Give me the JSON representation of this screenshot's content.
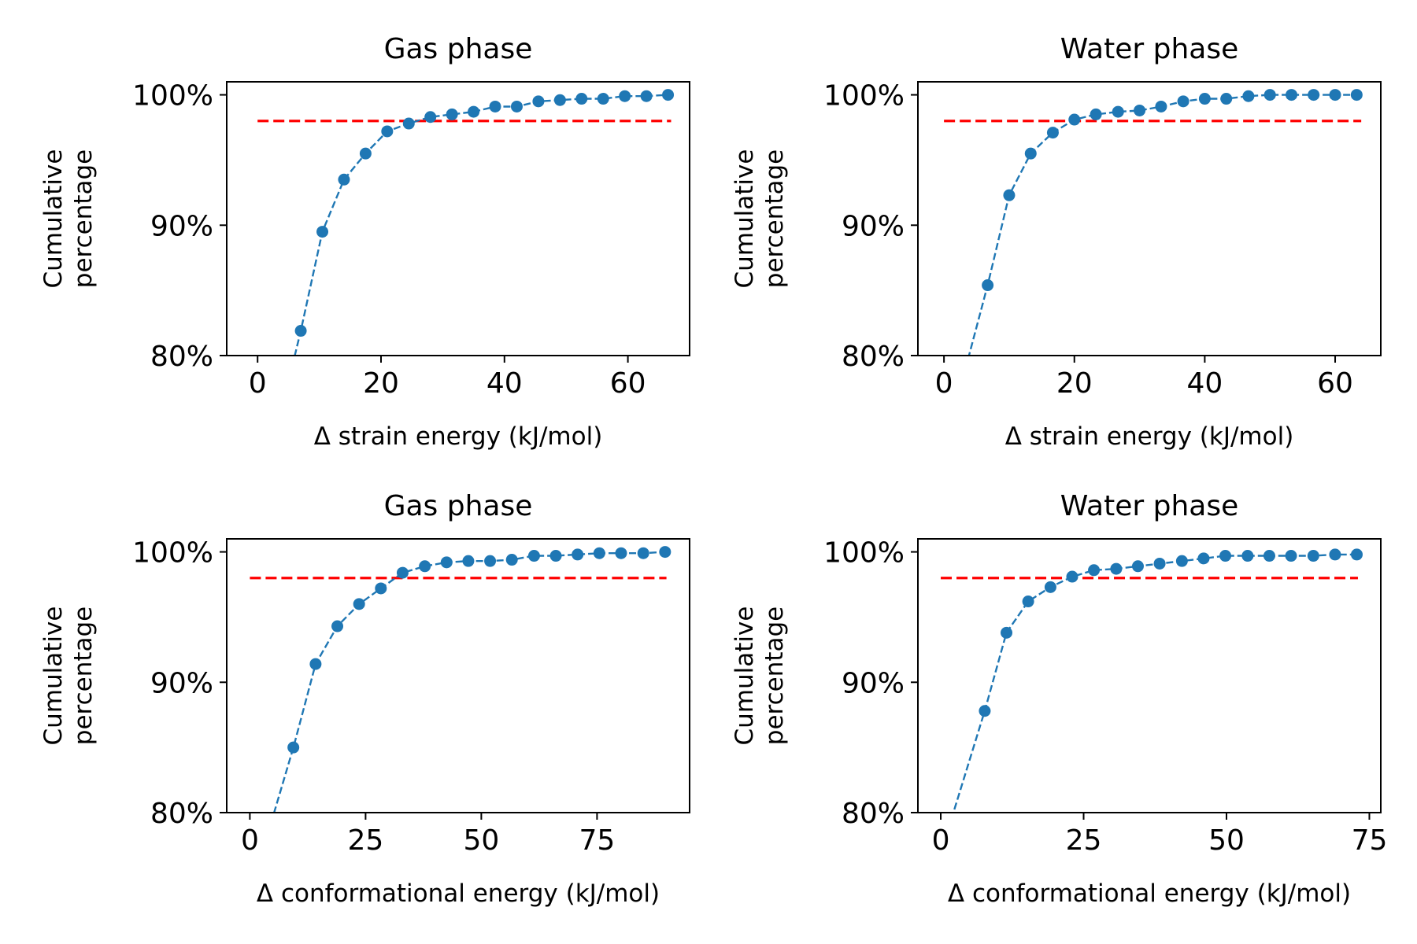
{
  "colors": {
    "series": "#1f77b4",
    "threshold": "#ff0000",
    "axis": "#000000",
    "background": "#ffffff"
  },
  "chart_data": [
    {
      "type": "line",
      "title": "Gas phase",
      "xlabel": "Δ strain energy (kJ/mol)",
      "ylabel": [
        "Cumulative",
        "percentage"
      ],
      "xlim": [
        -5,
        70
      ],
      "ylim": [
        0.8,
        1.01
      ],
      "xticks": [
        0,
        20,
        40,
        60
      ],
      "xtick_labels": [
        "0",
        "20",
        "40",
        "60"
      ],
      "yticks": [
        0.8,
        0.9,
        1.0
      ],
      "ytick_labels": [
        "80%",
        "90%",
        "100%"
      ],
      "grid": false,
      "legend": "none",
      "threshold": {
        "y": 0.98,
        "x": [
          0,
          67
        ],
        "style": "dashed"
      },
      "series": [
        {
          "style": "dashed-line-with-dots",
          "x": [
            7,
            10.5,
            14,
            17.5,
            21,
            24.5,
            28,
            31.5,
            35,
            38.5,
            42,
            45.5,
            49,
            52.5,
            56,
            59.5,
            63,
            66.5
          ],
          "y": [
            0.819,
            0.895,
            0.935,
            0.955,
            0.972,
            0.978,
            0.983,
            0.985,
            0.987,
            0.991,
            0.991,
            0.995,
            0.996,
            0.997,
            0.997,
            0.999,
            0.999,
            1.0
          ]
        }
      ]
    },
    {
      "type": "line",
      "title": "Water phase",
      "xlabel": "Δ strain energy (kJ/mol)",
      "ylabel": [
        "Cumulative",
        "percentage"
      ],
      "xlim": [
        -4,
        67
      ],
      "ylim": [
        0.8,
        1.01
      ],
      "xticks": [
        0,
        20,
        40,
        60
      ],
      "xtick_labels": [
        "0",
        "20",
        "40",
        "60"
      ],
      "yticks": [
        0.8,
        0.9,
        1.0
      ],
      "ytick_labels": [
        "80%",
        "90%",
        "100%"
      ],
      "grid": false,
      "legend": "none",
      "threshold": {
        "y": 0.98,
        "x": [
          0,
          64
        ],
        "style": "dashed"
      },
      "series": [
        {
          "style": "dashed-line-with-dots",
          "x": [
            6.7,
            10,
            13.3,
            16.7,
            20,
            23.3,
            26.7,
            30,
            33.3,
            36.7,
            40,
            43.3,
            46.7,
            50,
            53.3,
            56.7,
            60,
            63.3
          ],
          "y": [
            0.854,
            0.923,
            0.955,
            0.971,
            0.981,
            0.985,
            0.987,
            0.988,
            0.991,
            0.995,
            0.997,
            0.997,
            0.999,
            1.0,
            1.0,
            1.0,
            1.0,
            1.0
          ]
        }
      ]
    },
    {
      "type": "line",
      "title": "Gas phase",
      "xlabel": "Δ conformational energy (kJ/mol)",
      "ylabel": [
        "Cumulative",
        "percentage"
      ],
      "xlim": [
        -5,
        95
      ],
      "ylim": [
        0.8,
        1.01
      ],
      "xticks": [
        0,
        25,
        50,
        75
      ],
      "xtick_labels": [
        "0",
        "25",
        "50",
        "75"
      ],
      "yticks": [
        0.8,
        0.9,
        1.0
      ],
      "ytick_labels": [
        "80%",
        "90%",
        "100%"
      ],
      "grid": false,
      "legend": "none",
      "threshold": {
        "y": 0.98,
        "x": [
          0,
          90
        ],
        "style": "dashed"
      },
      "series": [
        {
          "style": "dashed-line-with-dots",
          "x": [
            9.4,
            14.2,
            18.9,
            23.6,
            28.3,
            33,
            37.8,
            42.5,
            47.2,
            51.9,
            56.6,
            61.4,
            66.1,
            70.8,
            75.5,
            80.2,
            85,
            89.7
          ],
          "y": [
            0.85,
            0.914,
            0.943,
            0.96,
            0.972,
            0.984,
            0.989,
            0.992,
            0.993,
            0.993,
            0.994,
            0.997,
            0.997,
            0.998,
            0.999,
            0.999,
            0.999,
            1.0
          ]
        }
      ]
    },
    {
      "type": "line",
      "title": "Water phase",
      "xlabel": "Δ conformational energy (kJ/mol)",
      "ylabel": [
        "Cumulative",
        "percentage"
      ],
      "xlim": [
        -4,
        77
      ],
      "ylim": [
        0.8,
        1.01
      ],
      "xticks": [
        0,
        25,
        50,
        75
      ],
      "xtick_labels": [
        "0",
        "25",
        "50",
        "75"
      ],
      "yticks": [
        0.8,
        0.9,
        1.0
      ],
      "ytick_labels": [
        "80%",
        "90%",
        "100%"
      ],
      "grid": false,
      "legend": "none",
      "threshold": {
        "y": 0.98,
        "x": [
          0,
          73
        ],
        "style": "dashed"
      },
      "series": [
        {
          "style": "dashed-line-with-dots",
          "x": [
            7.7,
            11.5,
            15.3,
            19.2,
            23,
            26.8,
            30.7,
            34.5,
            38.3,
            42.2,
            46,
            49.8,
            53.7,
            57.5,
            61.3,
            65.2,
            69,
            72.8
          ],
          "y": [
            0.878,
            0.938,
            0.962,
            0.973,
            0.981,
            0.986,
            0.987,
            0.989,
            0.991,
            0.993,
            0.995,
            0.997,
            0.997,
            0.997,
            0.997,
            0.997,
            0.998,
            0.998
          ]
        }
      ]
    }
  ]
}
